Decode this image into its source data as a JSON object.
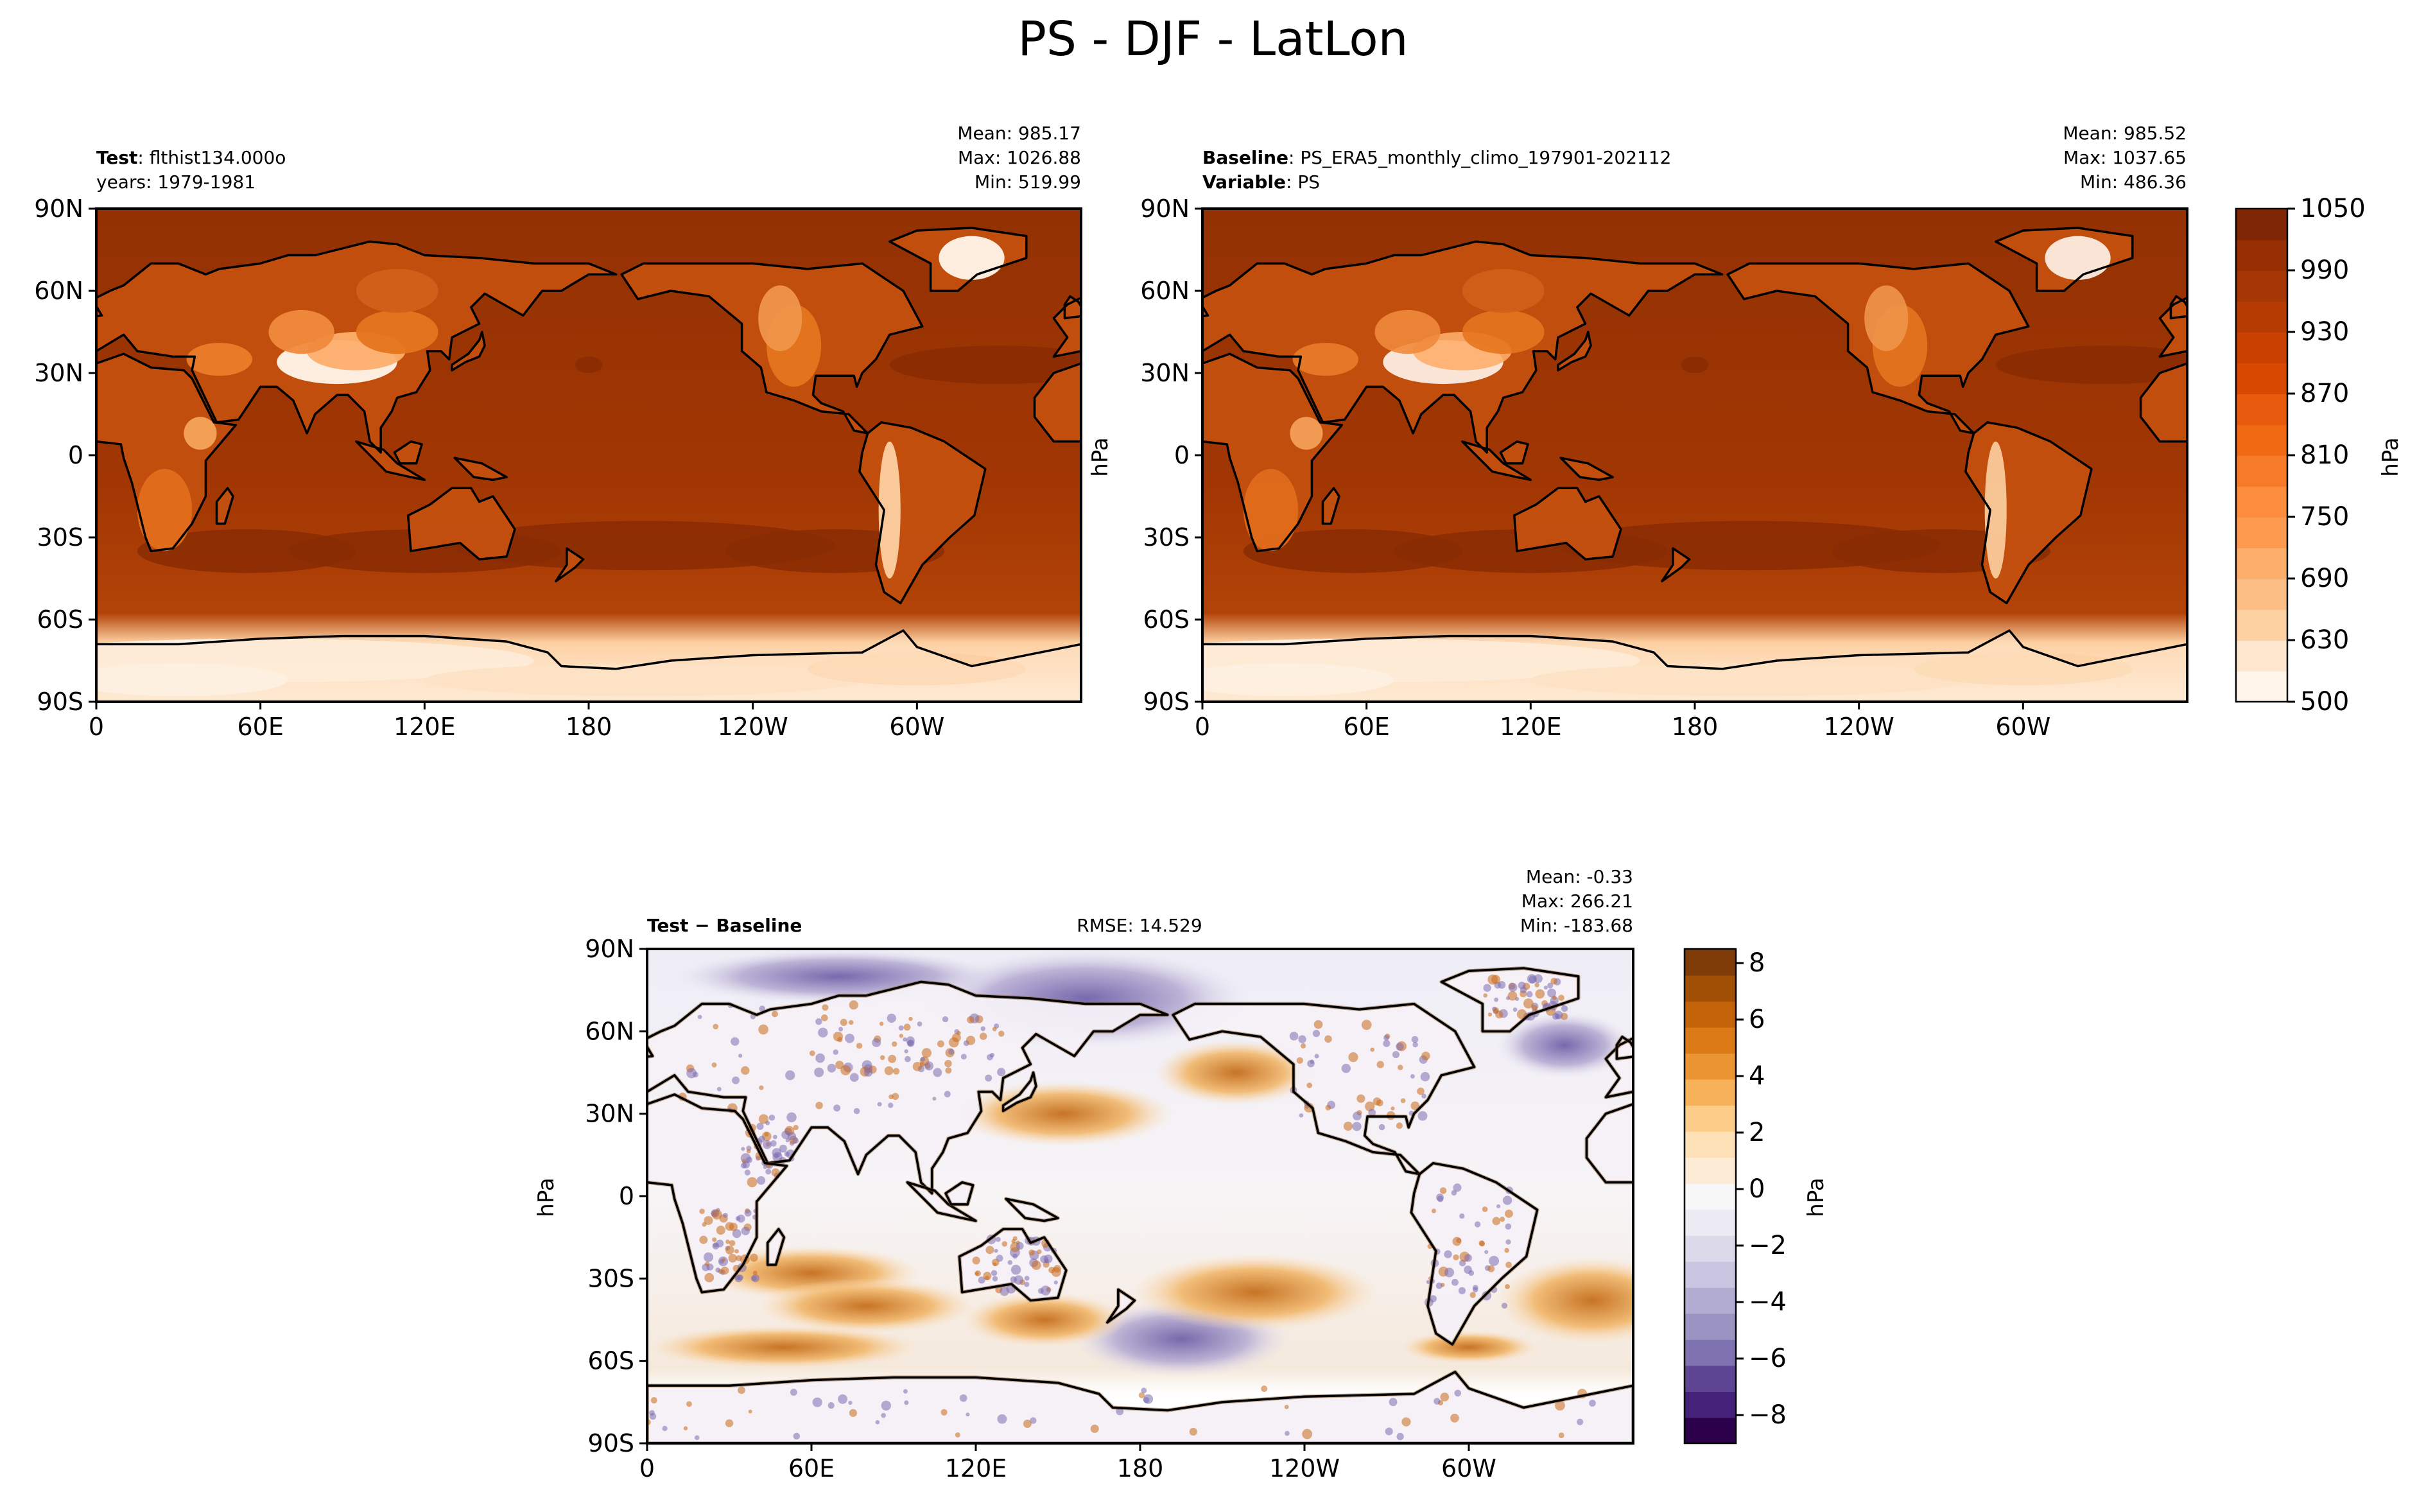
{
  "figure": {
    "title": "PS - DJF - LatLon"
  },
  "chart_data": [
    {
      "type": "heatmap",
      "name": "test",
      "label_bold": "Test",
      "label_text": "flthist134.000o",
      "sub_text": "years: 1979-1981",
      "stats": {
        "mean": "Mean: 985.17",
        "max": "Max: 1026.88",
        "min": "Min: 519.99"
      },
      "xlim": [
        0,
        360
      ],
      "ylim": [
        -90,
        90
      ],
      "xticks": [
        "0",
        "60E",
        "120E",
        "180",
        "120W",
        "60W"
      ],
      "yticks": [
        "90N",
        "60N",
        "30N",
        "0",
        "30S",
        "60S",
        "90S"
      ],
      "colormap": "Oranges",
      "units": "hPa"
    },
    {
      "type": "heatmap",
      "name": "baseline",
      "label_bold": "Baseline",
      "label_text": "PS_ERA5_monthly_climo_197901-202112",
      "label2_bold": "Variable",
      "label2_text": "PS",
      "stats": {
        "mean": "Mean: 985.52",
        "max": "Max: 1037.65",
        "min": "Min: 486.36"
      },
      "xlim": [
        0,
        360
      ],
      "ylim": [
        -90,
        90
      ],
      "xticks": [
        "0",
        "60E",
        "120E",
        "180",
        "120W",
        "60W"
      ],
      "yticks": [
        "90N",
        "60N",
        "30N",
        "0",
        "30S",
        "60S",
        "90S"
      ],
      "ylabel": "hPa",
      "colorbar": {
        "label": "hPa",
        "range": [
          500,
          1050
        ],
        "tick_labels": [
          "1050",
          "990",
          "930",
          "870",
          "810",
          "750",
          "690",
          "630",
          "500"
        ],
        "levels": [
          500,
          600,
          630,
          660,
          690,
          720,
          750,
          780,
          810,
          840,
          870,
          900,
          930,
          960,
          990,
          1020,
          1050
        ]
      }
    },
    {
      "type": "heatmap",
      "name": "difference",
      "label_bold": "Test − Baseline",
      "rmse": "RMSE: 14.529",
      "stats": {
        "mean": "Mean: -0.33",
        "max": "Max: 266.21",
        "min": "Min: -183.68"
      },
      "xlim": [
        0,
        360
      ],
      "ylim": [
        -90,
        90
      ],
      "xticks": [
        "0",
        "60E",
        "120E",
        "180",
        "120W",
        "60W"
      ],
      "yticks": [
        "90N",
        "60N",
        "30N",
        "0",
        "30S",
        "60S",
        "90S"
      ],
      "ylabel": "hPa",
      "colormap": "PuOr_r",
      "colorbar": {
        "label": "hPa",
        "range": [
          -9,
          8.5
        ],
        "tick_labels": [
          "8",
          "6",
          "4",
          "2",
          "0",
          "−2",
          "−4",
          "−6",
          "−8"
        ],
        "tick_values": [
          8,
          6,
          4,
          2,
          0,
          -2,
          -4,
          -6,
          -8
        ]
      }
    }
  ],
  "colors": {
    "ocean_dark": "#8c2d04",
    "ocean_mid": "#a63603",
    "land_light": "#fdae6b",
    "high_white": "#fff5eb",
    "diff_orange": "#e08214",
    "diff_purple": "#8073ac",
    "coast": "#000000"
  }
}
